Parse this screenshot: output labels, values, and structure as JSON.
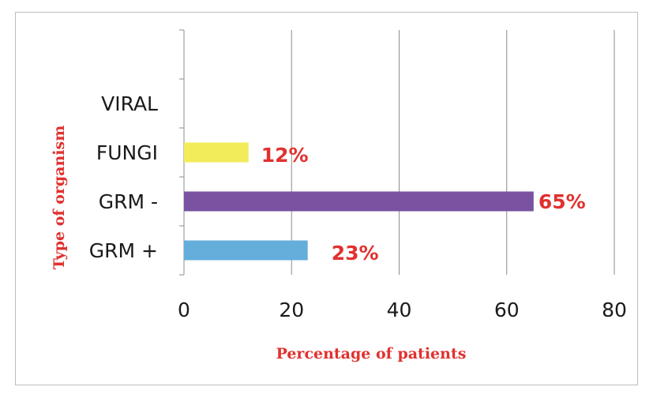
{
  "chart_data": {
    "type": "bar",
    "orientation": "horizontal",
    "categories": [
      "GRM +",
      "GRM -",
      "FUNGI",
      "VIRAL"
    ],
    "values": [
      23,
      65,
      12,
      0
    ],
    "data_labels": [
      "23%",
      "65%",
      "12%",
      ""
    ],
    "colors": [
      "#64aedb",
      "#7952a1",
      "#f2ec5a",
      "#cccccc"
    ],
    "label_color": "#e0312f",
    "xlabel": "Percentage of  patients",
    "ylabel": "Type of organism",
    "xlim": [
      0,
      80
    ],
    "xticks": [
      "0",
      "20",
      "40",
      "60",
      "80"
    ],
    "grid": true
  }
}
